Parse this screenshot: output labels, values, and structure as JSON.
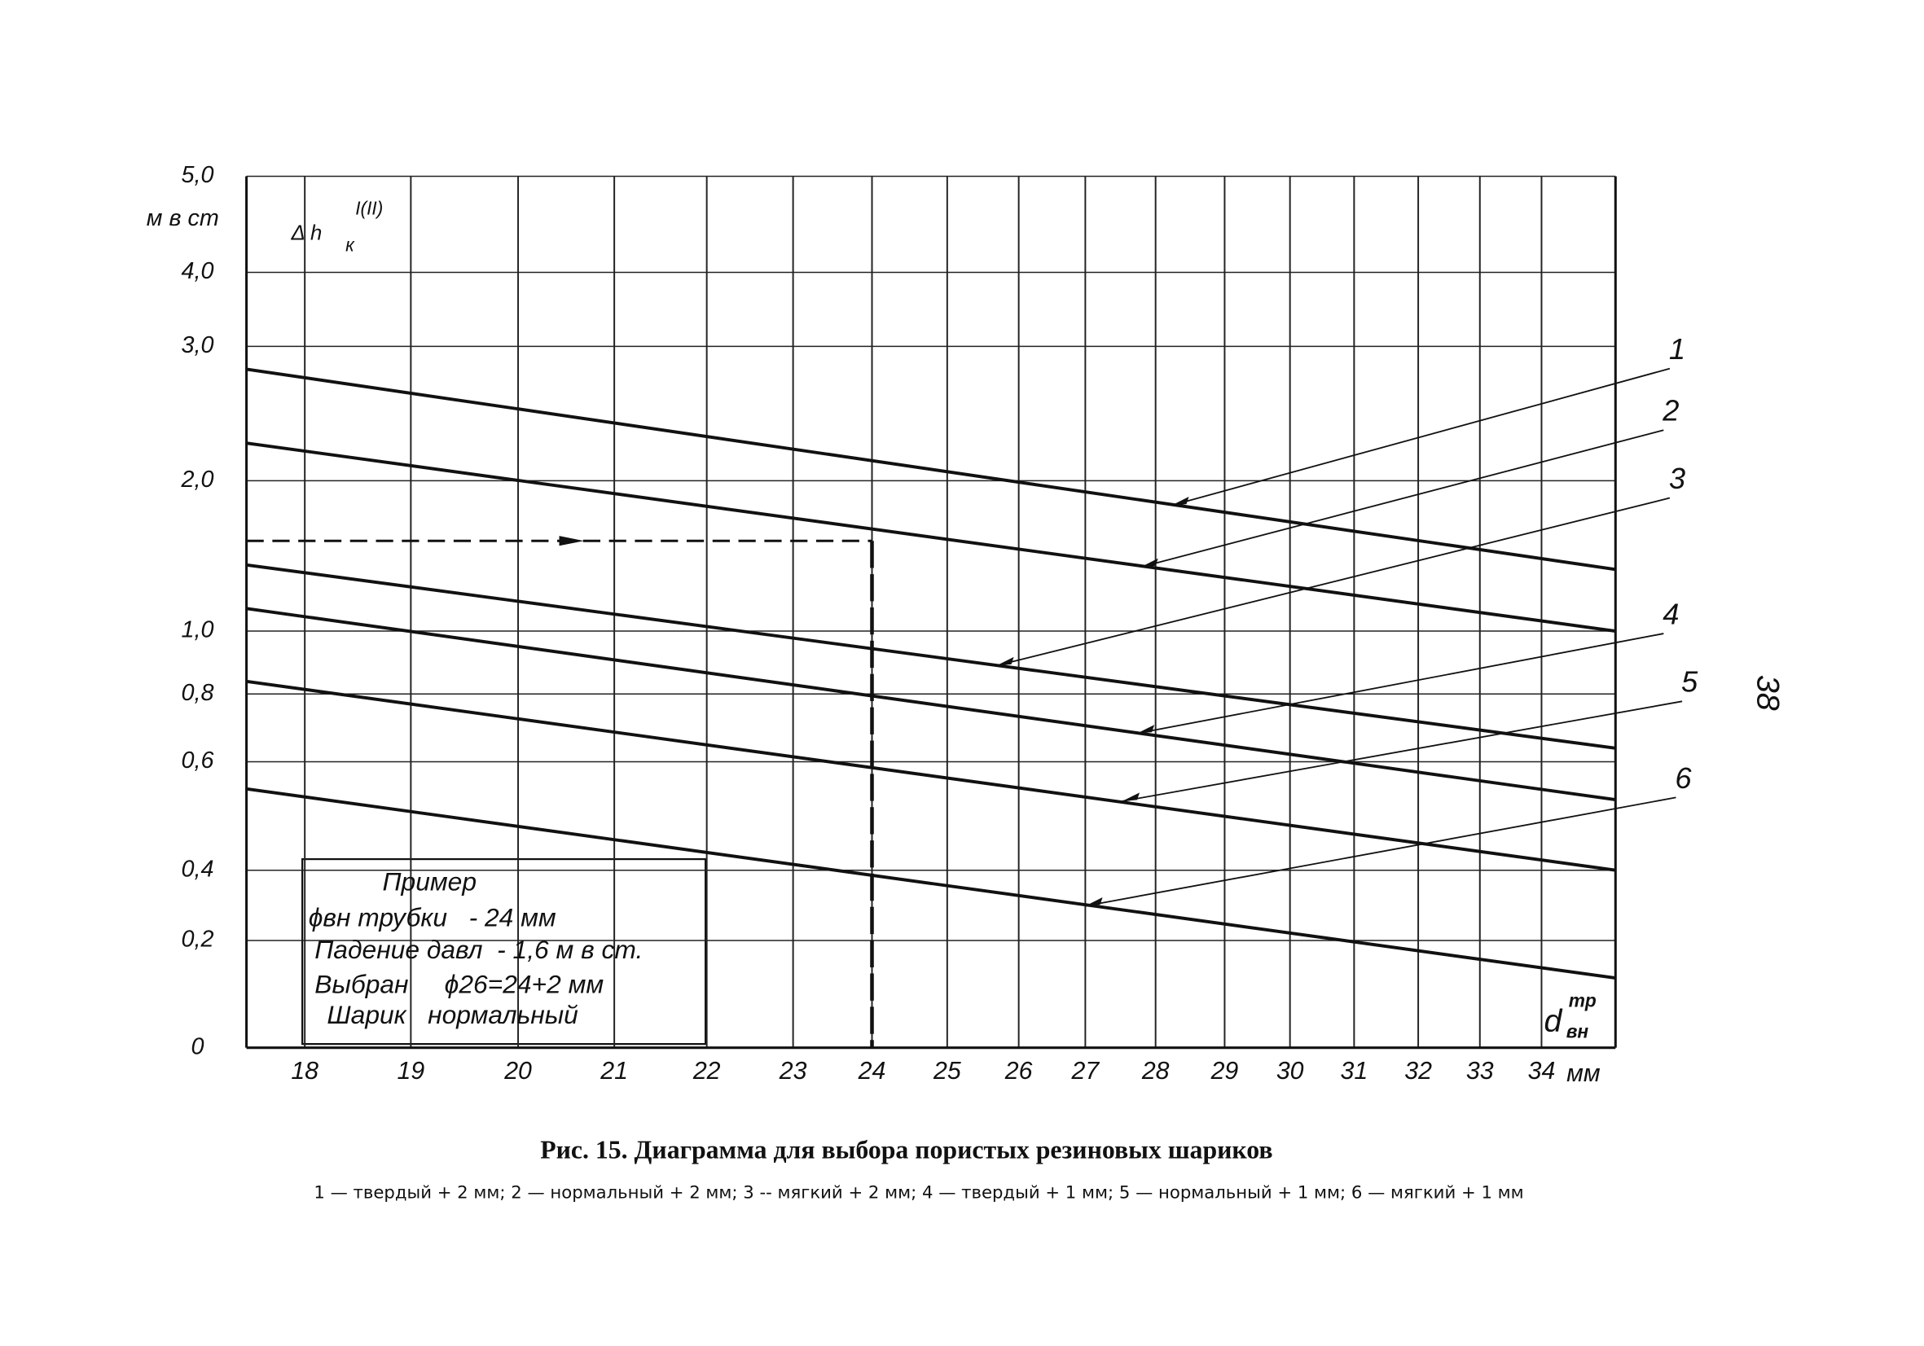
{
  "chart_data": {
    "type": "line",
    "title": "Рис. 15. Диаграмма для выбора пористых резиновых шариков",
    "caption": "1 — твердый + 2 мм; 2 — нормальный + 2 мм; 3 -- мягкий + 2 мм; 4 — твердый + 1 мм; 5 — нормальный + 1 мм; 6 — мягкий + 1 мм",
    "page_number": "38",
    "y_unit": "м в ст",
    "y_symbol": "Δ h",
    "y_symbol_sub": "к",
    "y_symbol_sup": "I(II)",
    "x_symbol": "d",
    "x_symbol_sub": "вн",
    "x_symbol_sup": "тр",
    "x_unit": "мм",
    "xlim": [
      17.45,
      35.2
    ],
    "xticks": [
      18,
      19,
      20,
      21,
      22,
      23,
      24,
      25,
      26,
      27,
      28,
      29,
      30,
      31,
      32,
      33,
      34
    ],
    "ylim": [
      0,
      5
    ],
    "yticks": [
      {
        "value": 5,
        "label": "5,0"
      },
      {
        "value": 4,
        "label": "4,0"
      },
      {
        "value": 3,
        "label": "3,0"
      },
      {
        "value": 2,
        "label": "2,0"
      },
      {
        "value": 1,
        "label": "1,0"
      },
      {
        "value": 0.8,
        "label": "0,8"
      },
      {
        "value": 0.6,
        "label": "0,6"
      },
      {
        "value": 0.4,
        "label": "0,4"
      },
      {
        "value": 0.2,
        "label": "0,2"
      },
      0
    ],
    "grid": true,
    "x": [
      17.45,
      35.2
    ],
    "series": [
      {
        "name": "1",
        "color": "#111111",
        "values": [
          2.83,
          1.41
        ]
      },
      {
        "name": "2",
        "color": "#111111",
        "values": [
          2.28,
          1.0
        ]
      },
      {
        "name": "3",
        "color": "#111111",
        "values": [
          1.44,
          0.64
        ]
      },
      {
        "name": "4",
        "color": "#111111",
        "values": [
          1.15,
          0.53
        ]
      },
      {
        "name": "5",
        "color": "#111111",
        "values": [
          0.84,
          0.4
        ]
      },
      {
        "name": "6",
        "color": "#111111",
        "values": [
          0.55,
          0.13
        ]
      }
    ],
    "example_point": {
      "x": 24,
      "y": 1.6
    },
    "example_box": [
      "Пример",
      "ϕвн трубки   - 24 мм",
      "Падение давл  - 1,6 м в ст.",
      "Выбран     ϕ26=24+2 мм",
      "Шарик   нормальный"
    ]
  }
}
